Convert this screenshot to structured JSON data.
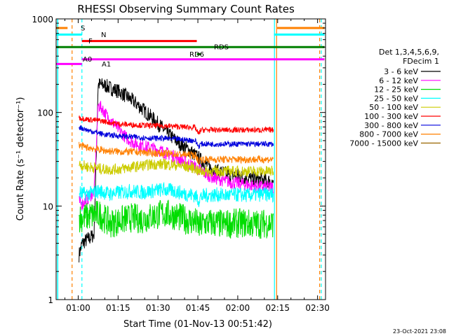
{
  "chart_data": {
    "type": "line",
    "title": "RHESSI Observing Summary Count Rates",
    "xlabel": "Start Time (01-Nov-13 00:51:42)",
    "ylabel": "Count Rate (s⁻¹ detector⁻¹)",
    "yscale": "log",
    "ylim": [
      1,
      1000
    ],
    "xlim_minutes": [
      51.7,
      153.0
    ],
    "x_ticks": [
      {
        "m": 60,
        "label": "01:00"
      },
      {
        "m": 75,
        "label": "01:15"
      },
      {
        "m": 90,
        "label": "01:30"
      },
      {
        "m": 105,
        "label": "01:45"
      },
      {
        "m": 120,
        "label": "02:00"
      },
      {
        "m": 135,
        "label": "02:15"
      },
      {
        "m": 150,
        "label": "02:30"
      }
    ],
    "y_ticks": [
      {
        "v": 1,
        "label": "1"
      },
      {
        "v": 10,
        "label": "10"
      },
      {
        "v": 100,
        "label": "100"
      },
      {
        "v": 1000,
        "label": "1000"
      }
    ],
    "legend": {
      "header": [
        "Det 1,3,4,5,6,9,",
        "FDecim 1"
      ],
      "placement": "right"
    },
    "series": [
      {
        "name": "3 - 6 keV",
        "color": "#000000",
        "x": [
          60.3,
          61.5,
          62.5,
          64.0,
          64.3,
          66.0,
          67.5,
          70.0,
          72.5,
          75.0,
          78.0,
          81.0,
          84.0,
          87.0,
          90.0,
          93.0,
          96.0,
          99.0,
          102.0,
          105.0,
          108.0,
          111.0,
          114.0,
          117.0,
          120.0,
          123.0,
          126.0,
          129.0,
          132.0,
          133.5
        ],
        "y": [
          3,
          4,
          4.2,
          4.5,
          4.5,
          5,
          200,
          195,
          180,
          170,
          150,
          130,
          110,
          92,
          76,
          62,
          52,
          45,
          39,
          33,
          28,
          24,
          23,
          21.5,
          21,
          20,
          19.5,
          19,
          18.5,
          18
        ]
      },
      {
        "name": "6 - 12 keV",
        "color": "#ff00ff",
        "x": [
          60.3,
          61.5,
          63.0,
          64.5,
          66.0,
          67.5,
          69.0,
          71.0,
          73.5,
          76.0,
          78.0,
          80.0,
          83.0,
          87.0,
          90.0,
          93.0,
          96.0,
          99.0,
          102.0,
          105.0,
          108.0,
          111.0,
          114.0,
          117.0,
          120.0,
          123.0,
          126.0,
          129.0,
          132.0,
          133.5
        ],
        "y": [
          11,
          10.5,
          11.5,
          13,
          14,
          120,
          110,
          90,
          75,
          62,
          54,
          49,
          45,
          42,
          40,
          37,
          34,
          31,
          28,
          25,
          22,
          20,
          19,
          18,
          17.5,
          17,
          16.5,
          16,
          16,
          16
        ]
      },
      {
        "name": "12 - 25 keV",
        "color": "#00dd00",
        "x": [
          60.3,
          62.0,
          64.0,
          66.0,
          68.0,
          72.0,
          76.0,
          80.0,
          84.0,
          88.0,
          92.0,
          96.0,
          100.0,
          104.0,
          105.5,
          107.0,
          110.0,
          114.0,
          118.0,
          122.0,
          126.0,
          130.0,
          133.5
        ],
        "y": [
          7.5,
          7.5,
          7.8,
          8.0,
          8.2,
          6.5,
          7.0,
          7.5,
          7.2,
          7.8,
          8.3,
          8.0,
          7.2,
          6.8,
          6.0,
          6.5,
          6.6,
          6.4,
          6.5,
          6.6,
          6.4,
          6.5,
          6.5
        ]
      },
      {
        "name": "25 - 50 keV",
        "color": "#00ffff",
        "x": [
          60.3,
          62.0,
          64.0,
          66.0,
          68.0,
          72.0,
          76.0,
          80.0,
          84.0,
          88.0,
          92.0,
          96.0,
          100.0,
          104.0,
          105.3,
          106.0,
          108.0,
          112.0,
          116.0,
          120.0,
          124.0,
          128.0,
          133.5
        ],
        "y": [
          14,
          13.5,
          13.5,
          14,
          14.5,
          13.5,
          14,
          14.5,
          14,
          14.5,
          15,
          14.5,
          13.5,
          13,
          11.5,
          12.5,
          13,
          13.2,
          13,
          13.2,
          13,
          13.3,
          13.3
        ]
      },
      {
        "name": "50 - 100 keV",
        "color": "#cccc00",
        "x": [
          60.3,
          62.0,
          64.0,
          66.0,
          68.0,
          72.0,
          76.0,
          80.0,
          84.0,
          88.0,
          92.0,
          96.0,
          100.0,
          104.0,
          105.3,
          106.0,
          108.0,
          112.0,
          116.0,
          120.0,
          124.0,
          128.0,
          133.5
        ],
        "y": [
          28,
          27,
          26,
          26,
          25,
          24.5,
          25,
          26,
          27,
          28,
          28,
          27.5,
          26.5,
          25.5,
          23,
          23.5,
          23.5,
          23.5,
          23.5,
          23.5,
          23.5,
          23.5,
          23.5
        ]
      },
      {
        "name": "100 - 300 keV",
        "color": "#ff0000",
        "x": [
          60.3,
          62.0,
          64.0,
          66.0,
          68.0,
          70.0,
          73.0,
          76.0,
          80.0,
          84.0,
          88.0,
          92.0,
          96.0,
          100.0,
          104.0,
          105.3,
          106.0,
          108.0,
          112.0,
          116.0,
          120.0,
          124.0,
          128.0,
          133.5
        ],
        "y": [
          88,
          86,
          84,
          83,
          82,
          80,
          77,
          75,
          74,
          73,
          72,
          72,
          71,
          70,
          69,
          58,
          65,
          65,
          65,
          65,
          65,
          65,
          65,
          65
        ]
      },
      {
        "name": "300 - 800 keV",
        "color": "#0000dd",
        "x": [
          60.3,
          62.0,
          64.0,
          66.0,
          68.0,
          70.0,
          73.0,
          76.0,
          80.0,
          84.0,
          88.0,
          92.0,
          96.0,
          100.0,
          104.0,
          105.3,
          106.0,
          108.0,
          112.0,
          116.0,
          120.0,
          124.0,
          128.0,
          133.5
        ],
        "y": [
          70,
          67,
          64,
          62,
          60,
          58,
          57,
          56,
          55,
          54,
          53,
          53,
          52,
          51,
          50,
          43,
          46,
          46,
          46,
          46,
          46,
          46,
          46,
          46
        ]
      },
      {
        "name": "800 - 7000 keV",
        "color": "#ff8000",
        "x": [
          60.3,
          62.0,
          64.0,
          66.0,
          68.0,
          70.0,
          73.0,
          76.0,
          80.0,
          84.0,
          88.0,
          92.0,
          96.0,
          100.0,
          104.0,
          105.3,
          106.0,
          108.0,
          112.0,
          116.0,
          120.0,
          124.0,
          128.0,
          133.5
        ],
        "y": [
          45,
          43,
          42,
          41,
          40,
          39,
          38.5,
          38,
          38,
          37.5,
          37,
          36.5,
          36,
          35.5,
          35,
          30,
          31.5,
          31.5,
          31.5,
          31.5,
          31.5,
          31.5,
          31.5,
          31.5
        ]
      },
      {
        "name": "7000 - 15000 keV",
        "color": "#996600",
        "x": [],
        "y": []
      }
    ],
    "state_bars": [
      {
        "label": "S",
        "color": "#ff8000",
        "segments": [
          [
            51.7,
            56.0
          ],
          [
            134.8,
            152.6
          ]
        ],
        "level": 800
      },
      {
        "label": "N",
        "color": "#00ffff",
        "segments": [
          [
            51.7,
            61.4
          ],
          [
            133.6,
            152.6
          ]
        ],
        "level": 680
      },
      {
        "label": "F",
        "color": "#ff0000",
        "segments": [
          [
            61.4,
            104.6
          ]
        ],
        "level": 580
      },
      {
        "label": "RDS",
        "color": "#008000",
        "segments": [
          [
            51.7,
            152.6
          ]
        ],
        "level": 500
      },
      {
        "label": "RD6",
        "color": "#008000",
        "segments": [
          [
            104.6,
            106.2
          ]
        ],
        "level": 420
      },
      {
        "label": "A0",
        "color": "#ff00ff",
        "segments": [
          [
            61.4,
            152.6
          ]
        ],
        "level": 370
      },
      {
        "label": "A1",
        "color": "#ff00ff",
        "segments": [
          [
            51.7,
            61.4
          ]
        ],
        "level": 330
      }
    ],
    "vlines": [
      {
        "m": 57.7,
        "color": "#ff8000",
        "style": "dashed"
      },
      {
        "m": 61.4,
        "color": "#00ffff",
        "style": "dashed"
      },
      {
        "m": 133.8,
        "color": "#00ffff",
        "style": "solid"
      },
      {
        "m": 134.6,
        "color": "#ff8000",
        "style": "solid"
      },
      {
        "m": 150.8,
        "color": "#ff8000",
        "style": "dashed"
      },
      {
        "m": 151.4,
        "color": "#00ffff",
        "style": "dashed"
      }
    ],
    "gap_line": {
      "m": 52.3,
      "color": "#00ffff"
    }
  },
  "footer": {
    "timestamp": "23-Oct-2021 23:08"
  }
}
